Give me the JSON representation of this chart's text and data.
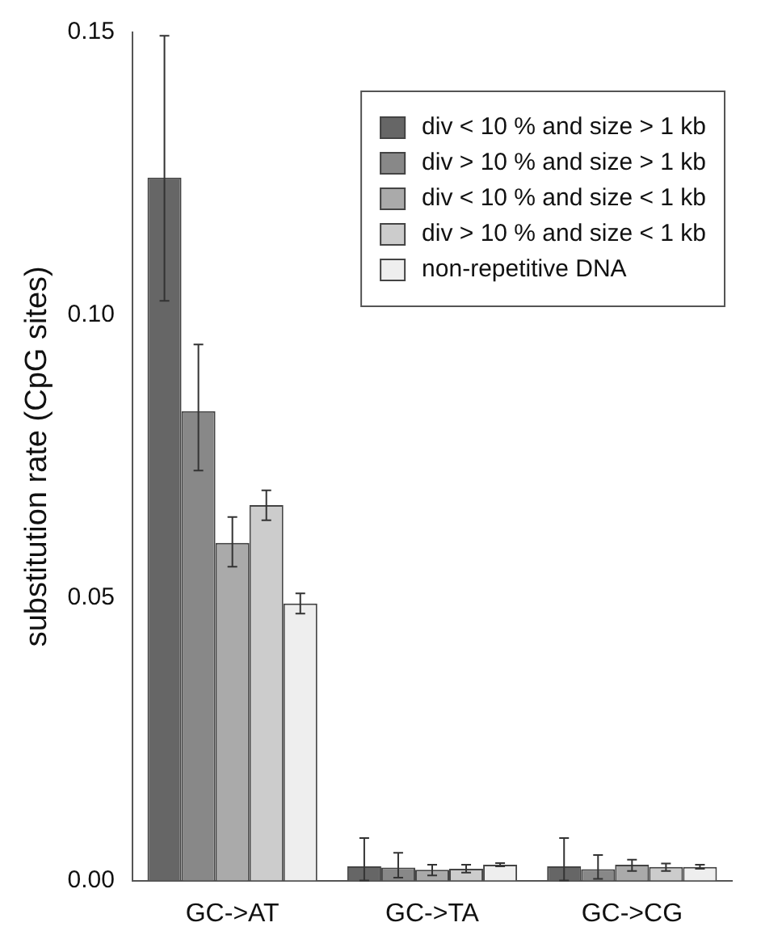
{
  "chart_data": {
    "type": "bar",
    "ylabel": "substitution rate (CpG sites)",
    "categories": [
      "GC->AT",
      "GC->TA",
      "GC->CG"
    ],
    "ylim": [
      0,
      0.15
    ],
    "yticks": [
      {
        "value": 0,
        "label": "0.00"
      },
      {
        "value": 0.05,
        "label": "0.05"
      },
      {
        "value": 0.1,
        "label": "0.10"
      },
      {
        "value": 0.15,
        "label": "0.15"
      }
    ],
    "grid": false,
    "legend": "top right",
    "series": [
      {
        "name": "div < 10 % and size > 1 kb",
        "color": "#666666",
        "values": [
          0.1243,
          0.0025,
          0.0025
        ],
        "errors": [
          [
            0.1025,
            0.1494
          ],
          [
            0.0,
            0.0075
          ],
          [
            0.0,
            0.0075
          ]
        ]
      },
      {
        "name": "div > 10 % and size > 1 kb",
        "color": "#888888",
        "values": [
          0.083,
          0.0023,
          0.002
        ],
        "errors": [
          [
            0.0725,
            0.0948
          ],
          [
            0.0005,
            0.0049
          ],
          [
            0.0003,
            0.0045
          ]
        ]
      },
      {
        "name": "div < 10 % and size < 1 kb",
        "color": "#aaaaaa",
        "values": [
          0.0597,
          0.0019,
          0.0028
        ],
        "errors": [
          [
            0.0555,
            0.0643
          ],
          [
            0.0009,
            0.0028
          ],
          [
            0.0017,
            0.0037
          ]
        ]
      },
      {
        "name": "div > 10 % and size < 1 kb",
        "color": "#cccccc",
        "values": [
          0.0664,
          0.0021,
          0.0024
        ],
        "errors": [
          [
            0.0637,
            0.069
          ],
          [
            0.0014,
            0.0028
          ],
          [
            0.0017,
            0.003
          ]
        ]
      },
      {
        "name": "non-repetitive DNA",
        "color": "#eeeeee",
        "values": [
          0.049,
          0.0028,
          0.0024
        ],
        "errors": [
          [
            0.0472,
            0.0508
          ],
          [
            0.0025,
            0.0031
          ],
          [
            0.0021,
            0.0028
          ]
        ]
      }
    ]
  }
}
